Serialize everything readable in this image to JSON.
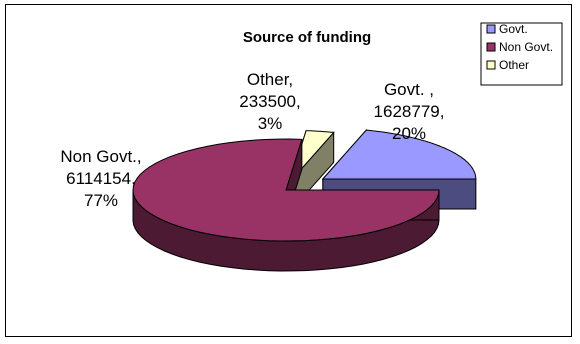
{
  "chart_data": {
    "type": "pie",
    "title": "Source of funding",
    "style": "3d-exploded",
    "categories": [
      "Govt.",
      "Non Govt.",
      "Other"
    ],
    "values": [
      1628779,
      6114154,
      233500
    ],
    "percents": [
      20,
      77,
      3
    ],
    "data_labels": [
      [
        "Govt. ,",
        "1628779,",
        "20%"
      ],
      [
        "Non Govt.,",
        "6114154,",
        "77%"
      ],
      [
        "Other,",
        "233500,",
        "3%"
      ]
    ],
    "legend_labels": [
      "Govt.",
      "Non Govt.",
      "Other"
    ],
    "legend_position": "top-right",
    "colors": [
      "#9999FF",
      "#993366",
      "#FFFFCC"
    ],
    "side_colors": [
      "#4C4C80",
      "#4D1A33",
      "#808066"
    ]
  }
}
